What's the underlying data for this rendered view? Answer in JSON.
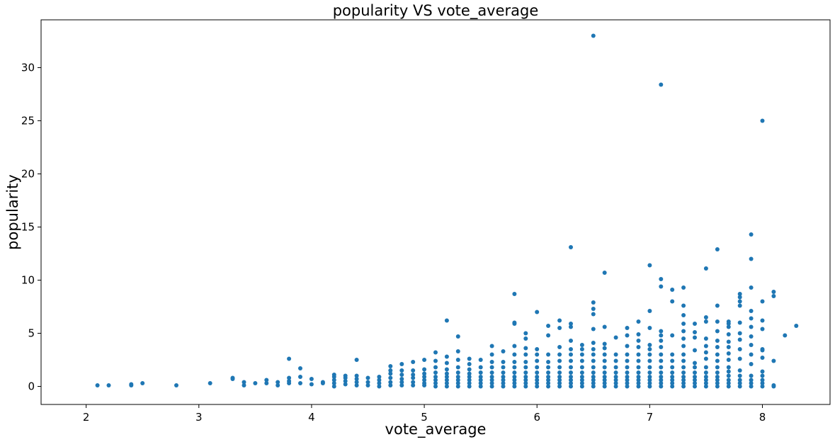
{
  "chart_data": {
    "type": "scatter",
    "title": "popularity VS vote_average",
    "xlabel": "vote_average",
    "ylabel": "popularity",
    "xlim": [
      1.6,
      8.6
    ],
    "ylim": [
      -1.7,
      34.5
    ],
    "xticks": [
      2,
      3,
      4,
      5,
      6,
      7,
      8
    ],
    "yticks": [
      0,
      5,
      10,
      15,
      20,
      25,
      30
    ],
    "grid": false,
    "marker_color": "#1f77b4",
    "points": [
      [
        2.1,
        0.1
      ],
      [
        2.2,
        0.1
      ],
      [
        2.4,
        0.1
      ],
      [
        2.4,
        0.2
      ],
      [
        2.5,
        0.3
      ],
      [
        2.8,
        0.1
      ],
      [
        3.1,
        0.3
      ],
      [
        3.3,
        0.7
      ],
      [
        3.3,
        0.8
      ],
      [
        3.4,
        0.1
      ],
      [
        3.4,
        0.4
      ],
      [
        3.5,
        0.3
      ],
      [
        3.6,
        0.3
      ],
      [
        3.6,
        0.6
      ],
      [
        3.7,
        0.1
      ],
      [
        3.7,
        0.4
      ],
      [
        3.8,
        0.3
      ],
      [
        3.8,
        0.5
      ],
      [
        3.8,
        0.8
      ],
      [
        3.8,
        2.6
      ],
      [
        3.9,
        0.3
      ],
      [
        3.9,
        0.9
      ],
      [
        3.9,
        1.7
      ],
      [
        4.0,
        0.2
      ],
      [
        4.0,
        0.7
      ],
      [
        4.1,
        0.3
      ],
      [
        4.1,
        0.4
      ],
      [
        4.2,
        0.0
      ],
      [
        4.2,
        0.3
      ],
      [
        4.2,
        0.6
      ],
      [
        4.2,
        0.9
      ],
      [
        4.2,
        1.1
      ],
      [
        4.3,
        0.2
      ],
      [
        4.3,
        0.5
      ],
      [
        4.3,
        0.8
      ],
      [
        4.3,
        1.0
      ],
      [
        4.4,
        0.1
      ],
      [
        4.4,
        0.4
      ],
      [
        4.4,
        0.7
      ],
      [
        4.4,
        1.0
      ],
      [
        4.4,
        2.5
      ],
      [
        4.5,
        0.1
      ],
      [
        4.5,
        0.4
      ],
      [
        4.5,
        0.8
      ],
      [
        4.6,
        0.0
      ],
      [
        4.6,
        0.3
      ],
      [
        4.6,
        0.6
      ],
      [
        4.6,
        0.9
      ],
      [
        4.7,
        0.1
      ],
      [
        4.7,
        0.4
      ],
      [
        4.7,
        0.8
      ],
      [
        4.7,
        1.2
      ],
      [
        4.7,
        1.5
      ],
      [
        4.7,
        1.9
      ],
      [
        4.8,
        0.1
      ],
      [
        4.8,
        0.4
      ],
      [
        4.8,
        0.7
      ],
      [
        4.8,
        1.1
      ],
      [
        4.8,
        1.5
      ],
      [
        4.8,
        2.1
      ],
      [
        4.9,
        0.1
      ],
      [
        4.9,
        0.4
      ],
      [
        4.9,
        0.8
      ],
      [
        4.9,
        1.1
      ],
      [
        4.9,
        1.5
      ],
      [
        4.9,
        2.3
      ],
      [
        5.0,
        0.1
      ],
      [
        5.0,
        0.3
      ],
      [
        5.0,
        0.6
      ],
      [
        5.0,
        0.9
      ],
      [
        5.0,
        1.2
      ],
      [
        5.0,
        1.6
      ],
      [
        5.0,
        2.5
      ],
      [
        5.1,
        0.0
      ],
      [
        5.1,
        0.3
      ],
      [
        5.1,
        0.6
      ],
      [
        5.1,
        0.9
      ],
      [
        5.1,
        1.3
      ],
      [
        5.1,
        1.8
      ],
      [
        5.1,
        2.4
      ],
      [
        5.1,
        3.2
      ],
      [
        5.2,
        0.0
      ],
      [
        5.2,
        0.3
      ],
      [
        5.2,
        0.6
      ],
      [
        5.2,
        0.9
      ],
      [
        5.2,
        1.2
      ],
      [
        5.2,
        1.6
      ],
      [
        5.2,
        2.2
      ],
      [
        5.2,
        2.8
      ],
      [
        5.2,
        6.2
      ],
      [
        5.3,
        0.0
      ],
      [
        5.3,
        0.3
      ],
      [
        5.3,
        0.6
      ],
      [
        5.3,
        0.9
      ],
      [
        5.3,
        1.3
      ],
      [
        5.3,
        1.8
      ],
      [
        5.3,
        2.5
      ],
      [
        5.3,
        3.3
      ],
      [
        5.3,
        4.7
      ],
      [
        5.4,
        0.0
      ],
      [
        5.4,
        0.3
      ],
      [
        5.4,
        0.6
      ],
      [
        5.4,
        0.9
      ],
      [
        5.4,
        1.2
      ],
      [
        5.4,
        1.6
      ],
      [
        5.4,
        2.1
      ],
      [
        5.4,
        2.6
      ],
      [
        5.5,
        0.0
      ],
      [
        5.5,
        0.3
      ],
      [
        5.5,
        0.6
      ],
      [
        5.5,
        0.9
      ],
      [
        5.5,
        1.3
      ],
      [
        5.5,
        1.8
      ],
      [
        5.5,
        2.5
      ],
      [
        5.6,
        0.0
      ],
      [
        5.6,
        0.3
      ],
      [
        5.6,
        0.6
      ],
      [
        5.6,
        0.9
      ],
      [
        5.6,
        1.3
      ],
      [
        5.6,
        1.8
      ],
      [
        5.6,
        2.3
      ],
      [
        5.6,
        3.0
      ],
      [
        5.6,
        3.8
      ],
      [
        5.7,
        0.0
      ],
      [
        5.7,
        0.3
      ],
      [
        5.7,
        0.6
      ],
      [
        5.7,
        0.9
      ],
      [
        5.7,
        1.3
      ],
      [
        5.7,
        1.8
      ],
      [
        5.7,
        2.3
      ],
      [
        5.7,
        3.3
      ],
      [
        5.8,
        0.0
      ],
      [
        5.8,
        0.3
      ],
      [
        5.8,
        0.6
      ],
      [
        5.8,
        0.9
      ],
      [
        5.8,
        1.3
      ],
      [
        5.8,
        1.8
      ],
      [
        5.8,
        2.3
      ],
      [
        5.8,
        3.0
      ],
      [
        5.8,
        3.8
      ],
      [
        5.8,
        5.9
      ],
      [
        5.8,
        6.0
      ],
      [
        5.8,
        8.7
      ],
      [
        5.9,
        0.0
      ],
      [
        5.9,
        0.3
      ],
      [
        5.9,
        0.6
      ],
      [
        5.9,
        0.9
      ],
      [
        5.9,
        1.3
      ],
      [
        5.9,
        1.8
      ],
      [
        5.9,
        2.3
      ],
      [
        5.9,
        3.0
      ],
      [
        5.9,
        3.6
      ],
      [
        5.9,
        4.5
      ],
      [
        5.9,
        5.0
      ],
      [
        6.0,
        0.0
      ],
      [
        6.0,
        0.3
      ],
      [
        6.0,
        0.6
      ],
      [
        6.0,
        0.9
      ],
      [
        6.0,
        1.3
      ],
      [
        6.0,
        1.8
      ],
      [
        6.0,
        2.4
      ],
      [
        6.0,
        3.0
      ],
      [
        6.0,
        3.5
      ],
      [
        6.0,
        7.0
      ],
      [
        6.1,
        0.0
      ],
      [
        6.1,
        0.3
      ],
      [
        6.1,
        0.6
      ],
      [
        6.1,
        0.9
      ],
      [
        6.1,
        1.3
      ],
      [
        6.1,
        1.8
      ],
      [
        6.1,
        2.3
      ],
      [
        6.1,
        3.0
      ],
      [
        6.1,
        4.8
      ],
      [
        6.1,
        5.7
      ],
      [
        6.2,
        0.0
      ],
      [
        6.2,
        0.3
      ],
      [
        6.2,
        0.6
      ],
      [
        6.2,
        0.9
      ],
      [
        6.2,
        1.3
      ],
      [
        6.2,
        1.8
      ],
      [
        6.2,
        2.4
      ],
      [
        6.2,
        3.0
      ],
      [
        6.2,
        3.7
      ],
      [
        6.2,
        5.5
      ],
      [
        6.2,
        6.2
      ],
      [
        6.3,
        0.0
      ],
      [
        6.3,
        0.3
      ],
      [
        6.3,
        0.6
      ],
      [
        6.3,
        0.9
      ],
      [
        6.3,
        1.3
      ],
      [
        6.3,
        1.8
      ],
      [
        6.3,
        2.4
      ],
      [
        6.3,
        3.0
      ],
      [
        6.3,
        3.5
      ],
      [
        6.3,
        4.3
      ],
      [
        6.3,
        5.6
      ],
      [
        6.3,
        5.9
      ],
      [
        6.3,
        13.1
      ],
      [
        6.4,
        0.0
      ],
      [
        6.4,
        0.3
      ],
      [
        6.4,
        0.6
      ],
      [
        6.4,
        0.9
      ],
      [
        6.4,
        1.3
      ],
      [
        6.4,
        1.8
      ],
      [
        6.4,
        2.4
      ],
      [
        6.4,
        3.0
      ],
      [
        6.4,
        3.5
      ],
      [
        6.4,
        3.9
      ],
      [
        6.5,
        0.0
      ],
      [
        6.5,
        0.3
      ],
      [
        6.5,
        0.6
      ],
      [
        6.5,
        0.9
      ],
      [
        6.5,
        1.3
      ],
      [
        6.5,
        1.8
      ],
      [
        6.5,
        2.4
      ],
      [
        6.5,
        3.0
      ],
      [
        6.5,
        3.5
      ],
      [
        6.5,
        4.1
      ],
      [
        6.5,
        5.4
      ],
      [
        6.5,
        6.8
      ],
      [
        6.5,
        7.3
      ],
      [
        6.5,
        7.9
      ],
      [
        6.5,
        33.0
      ],
      [
        6.6,
        0.0
      ],
      [
        6.6,
        0.3
      ],
      [
        6.6,
        0.6
      ],
      [
        6.6,
        0.9
      ],
      [
        6.6,
        1.3
      ],
      [
        6.6,
        1.8
      ],
      [
        6.6,
        2.4
      ],
      [
        6.6,
        3.0
      ],
      [
        6.6,
        3.6
      ],
      [
        6.6,
        4.0
      ],
      [
        6.6,
        5.6
      ],
      [
        6.6,
        10.7
      ],
      [
        6.7,
        0.0
      ],
      [
        6.7,
        0.3
      ],
      [
        6.7,
        0.6
      ],
      [
        6.7,
        0.9
      ],
      [
        6.7,
        1.3
      ],
      [
        6.7,
        1.8
      ],
      [
        6.7,
        2.4
      ],
      [
        6.7,
        3.0
      ],
      [
        6.7,
        4.6
      ],
      [
        6.8,
        0.0
      ],
      [
        6.8,
        0.3
      ],
      [
        6.8,
        0.6
      ],
      [
        6.8,
        0.9
      ],
      [
        6.8,
        1.3
      ],
      [
        6.8,
        1.8
      ],
      [
        6.8,
        2.4
      ],
      [
        6.8,
        3.0
      ],
      [
        6.8,
        3.8
      ],
      [
        6.8,
        4.8
      ],
      [
        6.8,
        5.5
      ],
      [
        6.9,
        0.0
      ],
      [
        6.9,
        0.3
      ],
      [
        6.9,
        0.6
      ],
      [
        6.9,
        0.9
      ],
      [
        6.9,
        1.3
      ],
      [
        6.9,
        1.8
      ],
      [
        6.9,
        2.4
      ],
      [
        6.9,
        3.0
      ],
      [
        6.9,
        3.7
      ],
      [
        6.9,
        4.3
      ],
      [
        6.9,
        4.9
      ],
      [
        6.9,
        6.1
      ],
      [
        7.0,
        0.0
      ],
      [
        7.0,
        0.3
      ],
      [
        7.0,
        0.6
      ],
      [
        7.0,
        0.9
      ],
      [
        7.0,
        1.3
      ],
      [
        7.0,
        1.8
      ],
      [
        7.0,
        2.4
      ],
      [
        7.0,
        3.0
      ],
      [
        7.0,
        3.5
      ],
      [
        7.0,
        3.9
      ],
      [
        7.0,
        5.5
      ],
      [
        7.0,
        7.1
      ],
      [
        7.0,
        11.4
      ],
      [
        7.1,
        0.0
      ],
      [
        7.1,
        0.3
      ],
      [
        7.1,
        0.6
      ],
      [
        7.1,
        0.9
      ],
      [
        7.1,
        1.3
      ],
      [
        7.1,
        1.8
      ],
      [
        7.1,
        2.4
      ],
      [
        7.1,
        3.0
      ],
      [
        7.1,
        3.7
      ],
      [
        7.1,
        4.3
      ],
      [
        7.1,
        4.8
      ],
      [
        7.1,
        5.2
      ],
      [
        7.1,
        9.4
      ],
      [
        7.1,
        10.1
      ],
      [
        7.1,
        28.4
      ],
      [
        7.2,
        0.0
      ],
      [
        7.2,
        0.3
      ],
      [
        7.2,
        0.6
      ],
      [
        7.2,
        0.9
      ],
      [
        7.2,
        1.3
      ],
      [
        7.2,
        1.8
      ],
      [
        7.2,
        2.4
      ],
      [
        7.2,
        3.0
      ],
      [
        7.2,
        4.8
      ],
      [
        7.2,
        8.0
      ],
      [
        7.2,
        9.1
      ],
      [
        7.3,
        0.0
      ],
      [
        7.3,
        0.3
      ],
      [
        7.3,
        0.6
      ],
      [
        7.3,
        0.9
      ],
      [
        7.3,
        1.3
      ],
      [
        7.3,
        1.8
      ],
      [
        7.3,
        2.4
      ],
      [
        7.3,
        3.0
      ],
      [
        7.3,
        3.8
      ],
      [
        7.3,
        4.5
      ],
      [
        7.3,
        5.2
      ],
      [
        7.3,
        5.9
      ],
      [
        7.3,
        6.7
      ],
      [
        7.3,
        7.6
      ],
      [
        7.3,
        9.3
      ],
      [
        7.4,
        0.0
      ],
      [
        7.4,
        0.3
      ],
      [
        7.4,
        0.6
      ],
      [
        7.4,
        0.9
      ],
      [
        7.4,
        1.3
      ],
      [
        7.4,
        1.8
      ],
      [
        7.4,
        2.2
      ],
      [
        7.4,
        3.4
      ],
      [
        7.4,
        4.6
      ],
      [
        7.4,
        5.1
      ],
      [
        7.4,
        5.9
      ],
      [
        7.5,
        0.0
      ],
      [
        7.5,
        0.3
      ],
      [
        7.5,
        0.6
      ],
      [
        7.5,
        0.9
      ],
      [
        7.5,
        1.3
      ],
      [
        7.5,
        1.8
      ],
      [
        7.5,
        2.6
      ],
      [
        7.5,
        3.2
      ],
      [
        7.5,
        3.8
      ],
      [
        7.5,
        4.5
      ],
      [
        7.5,
        6.1
      ],
      [
        7.5,
        6.5
      ],
      [
        7.5,
        11.1
      ],
      [
        7.6,
        0.0
      ],
      [
        7.6,
        0.3
      ],
      [
        7.6,
        0.6
      ],
      [
        7.6,
        0.9
      ],
      [
        7.6,
        1.3
      ],
      [
        7.6,
        1.8
      ],
      [
        7.6,
        2.4
      ],
      [
        7.6,
        3.0
      ],
      [
        7.6,
        3.7
      ],
      [
        7.6,
        4.3
      ],
      [
        7.6,
        5.2
      ],
      [
        7.6,
        6.1
      ],
      [
        7.6,
        7.6
      ],
      [
        7.6,
        12.9
      ],
      [
        7.7,
        0.0
      ],
      [
        7.7,
        0.3
      ],
      [
        7.7,
        0.6
      ],
      [
        7.7,
        1.0
      ],
      [
        7.7,
        1.4
      ],
      [
        7.7,
        1.8
      ],
      [
        7.7,
        2.5
      ],
      [
        7.7,
        3.1
      ],
      [
        7.7,
        3.7
      ],
      [
        7.7,
        4.2
      ],
      [
        7.7,
        4.9
      ],
      [
        7.7,
        5.6
      ],
      [
        7.7,
        5.9
      ],
      [
        7.7,
        6.1
      ],
      [
        7.8,
        0.0
      ],
      [
        7.8,
        0.3
      ],
      [
        7.8,
        0.6
      ],
      [
        7.8,
        1.0
      ],
      [
        7.8,
        1.5
      ],
      [
        7.8,
        2.6
      ],
      [
        7.8,
        3.5
      ],
      [
        7.8,
        4.4
      ],
      [
        7.8,
        5.0
      ],
      [
        7.8,
        6.0
      ],
      [
        7.8,
        7.6
      ],
      [
        7.8,
        8.0
      ],
      [
        7.8,
        8.4
      ],
      [
        7.8,
        8.7
      ],
      [
        7.9,
        0.0
      ],
      [
        7.9,
        0.3
      ],
      [
        7.9,
        0.6
      ],
      [
        7.9,
        1.0
      ],
      [
        7.9,
        2.1
      ],
      [
        7.9,
        3.0
      ],
      [
        7.9,
        3.9
      ],
      [
        7.9,
        4.7
      ],
      [
        7.9,
        5.6
      ],
      [
        7.9,
        6.4
      ],
      [
        7.9,
        7.1
      ],
      [
        7.9,
        9.3
      ],
      [
        7.9,
        12.0
      ],
      [
        7.9,
        14.3
      ],
      [
        8.0,
        0.0
      ],
      [
        8.0,
        0.3
      ],
      [
        8.0,
        0.6
      ],
      [
        8.0,
        1.0
      ],
      [
        8.0,
        1.4
      ],
      [
        8.0,
        2.7
      ],
      [
        8.0,
        3.4
      ],
      [
        8.0,
        3.5
      ],
      [
        8.0,
        5.4
      ],
      [
        8.0,
        6.2
      ],
      [
        8.0,
        8.0
      ],
      [
        8.0,
        25.0
      ],
      [
        8.1,
        0.0
      ],
      [
        8.1,
        0.1
      ],
      [
        8.1,
        2.4
      ],
      [
        8.1,
        8.5
      ],
      [
        8.1,
        8.9
      ],
      [
        8.2,
        4.8
      ],
      [
        8.3,
        5.7
      ]
    ]
  }
}
